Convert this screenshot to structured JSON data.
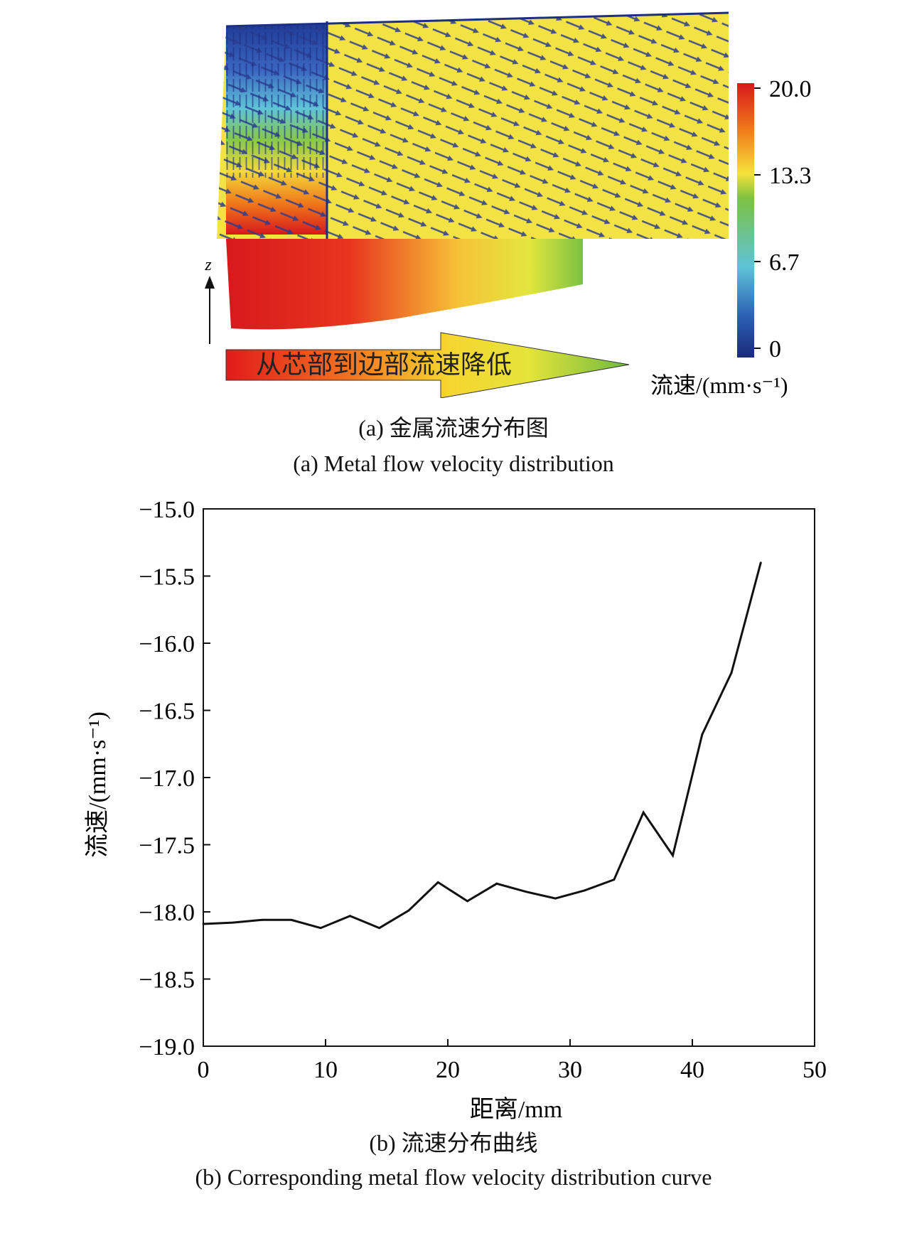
{
  "panel_a": {
    "axis_label": "z",
    "arrow_text": "从芯部到边部流速降低",
    "colorbar": {
      "ticks": [
        "20.0",
        "13.3",
        "6.7",
        "0"
      ],
      "label": "流速/(mm·s⁻¹)",
      "colors": [
        "#d7191c",
        "#f07a1a",
        "#f4e23a",
        "#7cc242",
        "#5fc3d8",
        "#2c5fb4",
        "#1a2a7a"
      ]
    },
    "caption_cn": "(a) 金属流速分布图",
    "caption_en": "(a) Metal flow velocity distribution"
  },
  "panel_b": {
    "caption_cn": "(b) 流速分布曲线",
    "caption_en": "(b) Corresponding metal flow velocity distribution curve"
  },
  "chart_data": {
    "type": "line",
    "xlabel": "距离/mm",
    "ylabel": "流速/(mm·s⁻¹)",
    "xlim": [
      0,
      50
    ],
    "ylim": [
      -19.0,
      -15.0
    ],
    "xticks": [
      0,
      10,
      20,
      30,
      40,
      50
    ],
    "yticks": [
      -15.0,
      -15.5,
      -16.0,
      -16.5,
      -17.0,
      -17.5,
      -18.0,
      -18.5,
      -19.0
    ],
    "ytick_labels": [
      "−15.0",
      "−15.5",
      "−16.0",
      "−16.5",
      "−17.0",
      "−17.5",
      "−18.0",
      "−18.5",
      "−19.0"
    ],
    "grid": false,
    "series": [
      {
        "x": [
          0,
          2.4,
          4.8,
          7.2,
          9.6,
          12.0,
          14.4,
          16.8,
          19.2,
          21.6,
          24.0,
          26.4,
          28.8,
          31.2,
          33.6,
          36.0,
          38.4,
          40.8,
          43.2,
          45.6
        ],
        "y": [
          -18.09,
          -18.08,
          -18.06,
          -18.06,
          -18.12,
          -18.03,
          -18.12,
          -17.99,
          -17.78,
          -17.92,
          -17.79,
          -17.85,
          -17.9,
          -17.84,
          -17.76,
          -17.26,
          -17.58,
          -16.68,
          -16.22,
          -15.4
        ],
        "color": "#111111"
      }
    ]
  }
}
